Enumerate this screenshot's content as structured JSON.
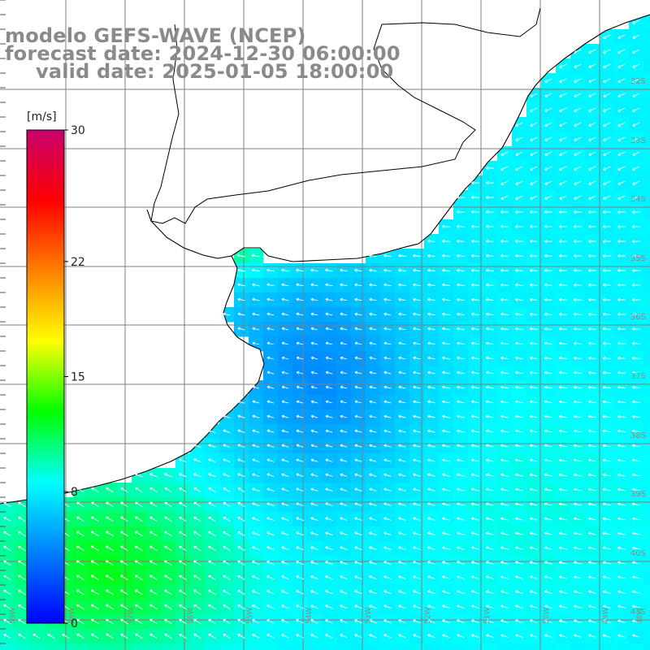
{
  "title": {
    "line1": "modelo GEFS-WAVE (NCEP)",
    "line2": "forecast date: 2024-12-30 06:00:00",
    "line3": "valid date: 2025-01-05 18:00:00"
  },
  "colorbar": {
    "unit": "[m/s]",
    "ticks": [
      "30",
      "22",
      "15",
      "8",
      "0"
    ],
    "tick_values": [
      30,
      22,
      15,
      8,
      0
    ],
    "colors": [
      "#0000ff",
      "#0080ff",
      "#00ffff",
      "#00ff00",
      "#ffff00",
      "#ff8000",
      "#ff0000",
      "#c8006e"
    ]
  },
  "map": {
    "lat_labels": [
      "32S",
      "33S",
      "34S",
      "35S",
      "36S",
      "37S",
      "38S",
      "39S",
      "40S",
      "41S"
    ],
    "lon_labels": [
      "59W",
      "58W",
      "57W",
      "56W",
      "55W",
      "54W",
      "53W",
      "52W",
      "51W",
      "50W",
      "49W",
      "48W"
    ],
    "land_color": "#ffffff",
    "grid_color": "#7f7f7f",
    "coast_color": "#000000",
    "arrow_color": "#ffffff"
  }
}
